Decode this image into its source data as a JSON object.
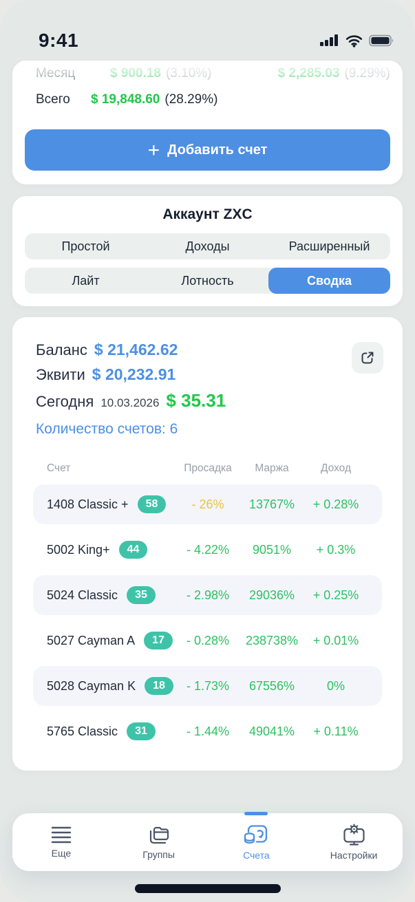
{
  "status_bar": {
    "time": "9:41"
  },
  "summary_card": {
    "month_label": "Месяц",
    "month_value1": "$ 900.18",
    "month_pct1": "(3.10%)",
    "month_value2": "$ 2,285.03",
    "month_pct2": "(9.29%)",
    "total_label": "Всего",
    "total_value": "$ 19,848.60",
    "total_pct": "(28.29%)",
    "add_button_label": "Добавить счет"
  },
  "account_card": {
    "title": "Аккаунт ZXC",
    "tabs_row1": [
      {
        "label": "Простой",
        "active": false
      },
      {
        "label": "Доходы",
        "active": false
      },
      {
        "label": "Расширенный",
        "active": false
      }
    ],
    "tabs_row2": [
      {
        "label": "Лайт",
        "active": false
      },
      {
        "label": "Лотность",
        "active": false
      },
      {
        "label": "Сводка",
        "active": true
      }
    ]
  },
  "balance_card": {
    "balance_label": "Баланс",
    "balance_value": "$ 21,462.62",
    "equity_label": "Эквити",
    "equity_value": "$ 20,232.91",
    "today_label": "Сегодня",
    "today_date": "10.03.2026",
    "today_value": "$ 35.31",
    "accounts_count": "Количество счетов: 6",
    "expand_icon": "expand-icon",
    "table": {
      "headers": [
        "Счет",
        "Просадка",
        "Маржа",
        "Доход"
      ],
      "rows": [
        {
          "name": "1408 Classic +",
          "badge": "58",
          "drawdown": "- 26%",
          "drawdown_color": "#E9C43C",
          "margin": "13767%",
          "profit": "+ 0.28%"
        },
        {
          "name": "5002 King+",
          "badge": "44",
          "drawdown": "- 4.22%",
          "drawdown_color": "#2EC162",
          "margin": "9051%",
          "profit": "+ 0.3%"
        },
        {
          "name": "5024 Classic",
          "badge": "35",
          "drawdown": "- 2.98%",
          "drawdown_color": "#2EC162",
          "margin": "29036%",
          "profit": "+ 0.25%"
        },
        {
          "name": "5027 Cayman A",
          "badge": "17",
          "drawdown": "- 0.28%",
          "drawdown_color": "#2EC162",
          "margin": "238738%",
          "profit": "+ 0.01%"
        },
        {
          "name": "5028 Cayman K",
          "badge": "18",
          "drawdown": "- 1.73%",
          "drawdown_color": "#2EC162",
          "margin": "67556%",
          "profit": "0%"
        },
        {
          "name": "5765 Classic",
          "badge": "31",
          "drawdown": "- 1.44%",
          "drawdown_color": "#2EC162",
          "margin": "49041%",
          "profit": "+ 0.11%"
        }
      ]
    }
  },
  "tab_bar": {
    "items": [
      {
        "label": "Еще",
        "icon": "menu-lines-icon",
        "active": false
      },
      {
        "label": "Группы",
        "icon": "folders-icon",
        "active": false
      },
      {
        "label": "Счета",
        "icon": "accounts-icon",
        "active": true
      },
      {
        "label": "Настройки",
        "icon": "settings-monitor-icon",
        "active": false
      }
    ]
  },
  "colors": {
    "accent_blue": "#4D8FE3",
    "green": "#2EC162",
    "bright_green": "#1FC84A",
    "warning_yellow": "#E9C43C",
    "teal_badge": "#3EC3A8",
    "row_highlight": "#F4F5FB",
    "background": "#E4E9E7"
  }
}
